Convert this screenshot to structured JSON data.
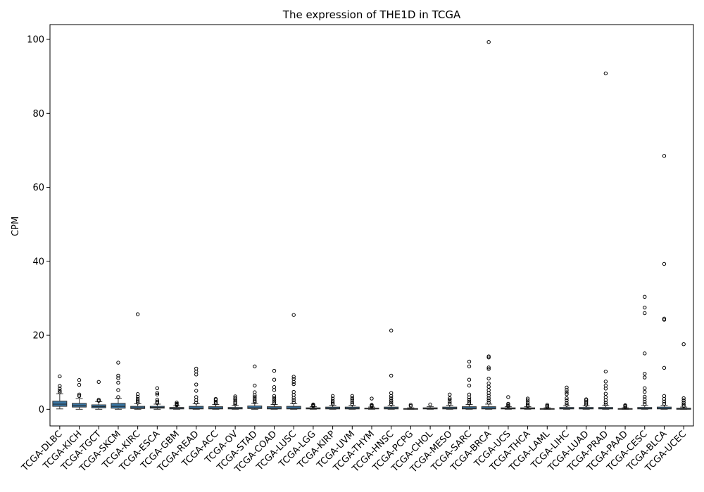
{
  "chart_data": {
    "type": "box",
    "title": "The expression of THE1D in TCGA",
    "xlabel": "",
    "ylabel": "CPM",
    "ylim": [
      -4.5,
      104
    ],
    "yticks": [
      0,
      20,
      40,
      60,
      80,
      100
    ],
    "grid": false,
    "box_color": "#3a76a4",
    "categories": [
      "TCGA-DLBC",
      "TCGA-KICH",
      "TCGA-TGCT",
      "TCGA-SKCM",
      "TCGA-KIRC",
      "TCGA-ESCA",
      "TCGA-GBM",
      "TCGA-READ",
      "TCGA-ACC",
      "TCGA-OV",
      "TCGA-STAD",
      "TCGA-COAD",
      "TCGA-LUSC",
      "TCGA-LGG",
      "TCGA-KIRP",
      "TCGA-UVM",
      "TCGA-THYM",
      "TCGA-HNSC",
      "TCGA-PCPG",
      "TCGA-CHOL",
      "TCGA-MESO",
      "TCGA-SARC",
      "TCGA-BRCA",
      "TCGA-UCS",
      "TCGA-THCA",
      "TCGA-LAML",
      "TCGA-LIHC",
      "TCGA-LUAD",
      "TCGA-PRAD",
      "TCGA-PAAD",
      "TCGA-CESC",
      "TCGA-BLCA",
      "TCGA-UCEC"
    ],
    "boxes": [
      {
        "whislo": 0.1,
        "q1": 0.8,
        "med": 1.4,
        "q3": 2.2,
        "whishi": 4.2,
        "fliers": [
          4.6,
          5.0,
          5.6,
          6.3,
          8.9
        ]
      },
      {
        "whislo": 0.0,
        "q1": 0.6,
        "med": 1.0,
        "q3": 1.6,
        "whishi": 2.9,
        "fliers": [
          3.6,
          4.0,
          6.6,
          7.9
        ]
      },
      {
        "whislo": 0.0,
        "q1": 0.4,
        "med": 0.7,
        "q3": 1.2,
        "whishi": 2.1,
        "fliers": [
          2.3,
          2.6,
          7.4
        ]
      },
      {
        "whislo": 0.0,
        "q1": 0.3,
        "med": 0.8,
        "q3": 1.6,
        "whishi": 3.0,
        "fliers": [
          3.3,
          5.2,
          7.2,
          8.4,
          9.1,
          12.6
        ]
      },
      {
        "whislo": 0.0,
        "q1": 0.2,
        "med": 0.4,
        "q3": 0.8,
        "whishi": 1.5,
        "fliers": [
          1.8,
          2.3,
          2.8,
          3.4,
          4.1,
          25.7
        ]
      },
      {
        "whislo": 0.0,
        "q1": 0.3,
        "med": 0.5,
        "q3": 0.8,
        "whishi": 1.4,
        "fliers": [
          1.7,
          2.1,
          2.6,
          4.0,
          4.4,
          5.7
        ]
      },
      {
        "whislo": 0.0,
        "q1": 0.1,
        "med": 0.3,
        "q3": 0.5,
        "whishi": 0.9,
        "fliers": [
          1.1,
          1.3,
          1.5,
          1.8
        ]
      },
      {
        "whislo": 0.0,
        "q1": 0.1,
        "med": 0.3,
        "q3": 0.8,
        "whishi": 1.5,
        "fliers": [
          1.8,
          2.5,
          3.3,
          5.0,
          6.7,
          9.4,
          10.2,
          11.0
        ]
      },
      {
        "whislo": 0.0,
        "q1": 0.1,
        "med": 0.3,
        "q3": 0.7,
        "whishi": 1.3,
        "fliers": [
          1.6,
          2.0,
          2.5,
          2.8
        ]
      },
      {
        "whislo": 0.0,
        "q1": 0.1,
        "med": 0.2,
        "q3": 0.5,
        "whishi": 1.0,
        "fliers": [
          1.3,
          1.7,
          2.1,
          2.6,
          3.0,
          3.5
        ]
      },
      {
        "whislo": 0.0,
        "q1": 0.2,
        "med": 0.4,
        "q3": 0.9,
        "whishi": 1.6,
        "fliers": [
          1.9,
          2.3,
          2.8,
          3.3,
          3.8,
          4.6,
          6.4,
          11.6
        ]
      },
      {
        "whislo": 0.0,
        "q1": 0.1,
        "med": 0.3,
        "q3": 0.7,
        "whishi": 1.3,
        "fliers": [
          1.6,
          2.1,
          2.6,
          3.1,
          3.6,
          5.2,
          6.0,
          8.0,
          10.4
        ]
      },
      {
        "whislo": 0.0,
        "q1": 0.1,
        "med": 0.3,
        "q3": 0.8,
        "whishi": 1.5,
        "fliers": [
          1.9,
          2.5,
          3.1,
          3.9,
          4.7,
          6.8,
          7.4,
          8.2,
          8.8,
          25.5
        ]
      },
      {
        "whislo": 0.0,
        "q1": 0.1,
        "med": 0.2,
        "q3": 0.4,
        "whishi": 0.7,
        "fliers": [
          0.9,
          1.1,
          1.3
        ]
      },
      {
        "whislo": 0.0,
        "q1": 0.1,
        "med": 0.3,
        "q3": 0.6,
        "whishi": 1.1,
        "fliers": [
          1.4,
          1.8,
          2.3,
          2.9,
          3.6
        ]
      },
      {
        "whislo": 0.0,
        "q1": 0.1,
        "med": 0.3,
        "q3": 0.6,
        "whishi": 1.1,
        "fliers": [
          1.4,
          1.9,
          2.5,
          3.0,
          3.6
        ]
      },
      {
        "whislo": 0.0,
        "q1": 0.1,
        "med": 0.2,
        "q3": 0.3,
        "whishi": 0.6,
        "fliers": [
          0.8,
          1.0,
          1.2,
          2.9
        ]
      },
      {
        "whislo": 0.0,
        "q1": 0.1,
        "med": 0.3,
        "q3": 0.6,
        "whishi": 1.1,
        "fliers": [
          1.4,
          1.9,
          2.4,
          3.0,
          3.6,
          4.4,
          9.1,
          21.3
        ]
      },
      {
        "whislo": 0.0,
        "q1": 0.0,
        "med": 0.1,
        "q3": 0.2,
        "whishi": 0.4,
        "fliers": [
          0.9,
          1.2
        ]
      },
      {
        "whislo": 0.0,
        "q1": 0.1,
        "med": 0.2,
        "q3": 0.4,
        "whishi": 0.7,
        "fliers": [
          1.3
        ]
      },
      {
        "whislo": 0.0,
        "q1": 0.1,
        "med": 0.3,
        "q3": 0.6,
        "whishi": 1.1,
        "fliers": [
          1.5,
          2.0,
          2.6,
          3.0,
          4.0
        ]
      },
      {
        "whislo": 0.0,
        "q1": 0.1,
        "med": 0.3,
        "q3": 0.7,
        "whishi": 1.3,
        "fliers": [
          1.6,
          2.1,
          2.6,
          3.2,
          4.0,
          6.4,
          8.0,
          11.6,
          12.9
        ]
      },
      {
        "whislo": 0.0,
        "q1": 0.1,
        "med": 0.3,
        "q3": 0.7,
        "whishi": 1.4,
        "fliers": [
          1.8,
          2.4,
          3.0,
          3.7,
          4.4,
          5.2,
          6.1,
          7.0,
          8.3,
          10.9,
          11.3,
          14.0,
          14.3,
          99.3
        ]
      },
      {
        "whislo": 0.0,
        "q1": 0.1,
        "med": 0.2,
        "q3": 0.4,
        "whishi": 0.7,
        "fliers": [
          0.9,
          1.2,
          1.5,
          3.3
        ]
      },
      {
        "whislo": 0.0,
        "q1": 0.1,
        "med": 0.2,
        "q3": 0.4,
        "whishi": 0.7,
        "fliers": [
          0.9,
          1.3,
          1.8,
          2.4,
          2.9
        ]
      },
      {
        "whislo": 0.0,
        "q1": 0.0,
        "med": 0.1,
        "q3": 0.2,
        "whishi": 0.4,
        "fliers": [
          0.6,
          0.9,
          1.2
        ]
      },
      {
        "whislo": 0.0,
        "q1": 0.1,
        "med": 0.2,
        "q3": 0.5,
        "whishi": 0.9,
        "fliers": [
          1.2,
          1.7,
          2.4,
          3.0,
          4.1,
          4.6,
          5.2,
          5.9
        ]
      },
      {
        "whislo": 0.0,
        "q1": 0.1,
        "med": 0.2,
        "q3": 0.5,
        "whishi": 0.9,
        "fliers": [
          1.2,
          1.6,
          2.0,
          2.4,
          2.7
        ]
      },
      {
        "whislo": 0.0,
        "q1": 0.1,
        "med": 0.2,
        "q3": 0.5,
        "whishi": 1.0,
        "fliers": [
          1.3,
          1.8,
          2.5,
          3.3,
          4.2,
          5.6,
          6.4,
          7.5,
          10.2,
          90.8
        ]
      },
      {
        "whislo": 0.0,
        "q1": 0.0,
        "med": 0.1,
        "q3": 0.2,
        "whishi": 0.4,
        "fliers": [
          0.6,
          0.9,
          1.1
        ]
      },
      {
        "whislo": 0.0,
        "q1": 0.1,
        "med": 0.2,
        "q3": 0.5,
        "whishi": 1.0,
        "fliers": [
          1.4,
          2.0,
          2.7,
          3.4,
          4.7,
          5.7,
          8.6,
          9.6,
          15.1,
          26.0,
          27.5,
          30.4
        ]
      },
      {
        "whislo": 0.0,
        "q1": 0.1,
        "med": 0.2,
        "q3": 0.6,
        "whishi": 1.1,
        "fliers": [
          1.5,
          2.1,
          2.8,
          3.6,
          11.2,
          24.2,
          24.5,
          39.3,
          68.5
        ]
      },
      {
        "whislo": 0.0,
        "q1": 0.0,
        "med": 0.1,
        "q3": 0.3,
        "whishi": 0.6,
        "fliers": [
          0.9,
          1.3,
          1.8,
          2.4,
          3.0,
          17.6
        ]
      }
    ]
  }
}
